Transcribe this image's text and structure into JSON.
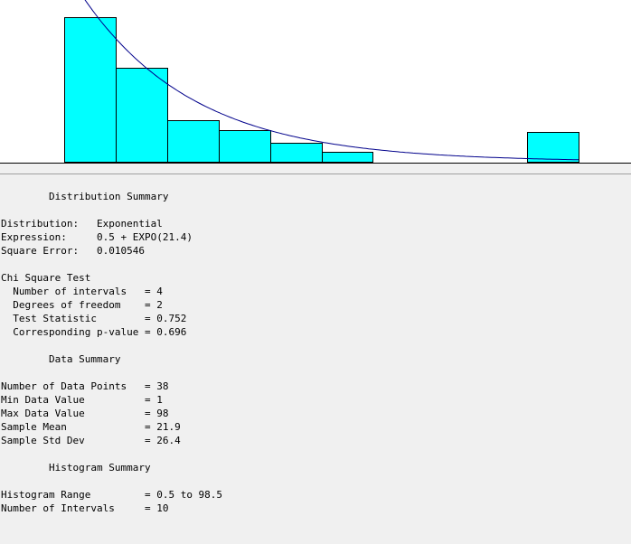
{
  "colors": {
    "bar_fill": "#00ffff",
    "bar_stroke": "#000000",
    "curve": "#00008b",
    "plot_bg": "#ffffff",
    "panel_bg": "#f0f0f0"
  },
  "chart_data": {
    "type": "bar",
    "x_range": [
      0.5,
      98.5
    ],
    "bin_edges": [
      0.5,
      10.3,
      20.1,
      29.9,
      39.7,
      49.5,
      59.3,
      69.1,
      78.9,
      88.7,
      98.5
    ],
    "values": [
      0.34,
      0.22,
      0.097,
      0.074,
      0.045,
      0.024,
      0,
      0,
      0,
      0.071
    ],
    "fitted_curve": {
      "distribution": "Exponential",
      "offset": 0.5,
      "mean": 21.4
    },
    "ylim": [
      0,
      0.38
    ],
    "grid": false,
    "legend": "none"
  },
  "report": {
    "dist_title": "Distribution Summary",
    "distribution_label": "Distribution:",
    "distribution_value": "Exponential",
    "expression_label": "Expression:",
    "expression_value": "0.5 + EXPO(21.4)",
    "square_error_label": "Square Error:",
    "square_error_value": "0.010546",
    "chi_title": "Chi Square Test",
    "intervals_label": "Number of intervals",
    "intervals_value": "4",
    "dof_label": "Degrees of freedom",
    "dof_value": "2",
    "test_stat_label": "Test Statistic",
    "test_stat_value": "0.752",
    "pvalue_label": "Corresponding p-value",
    "pvalue_value": "0.696",
    "data_title": "Data Summary",
    "points_label": "Number of Data Points",
    "points_value": "38",
    "min_label": "Min Data Value",
    "min_value": "1",
    "max_label": "Max Data Value",
    "max_value": "98",
    "mean_label": "Sample Mean",
    "mean_value": "21.9",
    "std_label": "Sample Std Dev",
    "std_value": "26.4",
    "hist_title": "Histogram Summary",
    "range_label": "Histogram Range",
    "range_value": "0.5 to 98.5",
    "num_int_label": "Number of Intervals",
    "num_int_value": "10"
  }
}
